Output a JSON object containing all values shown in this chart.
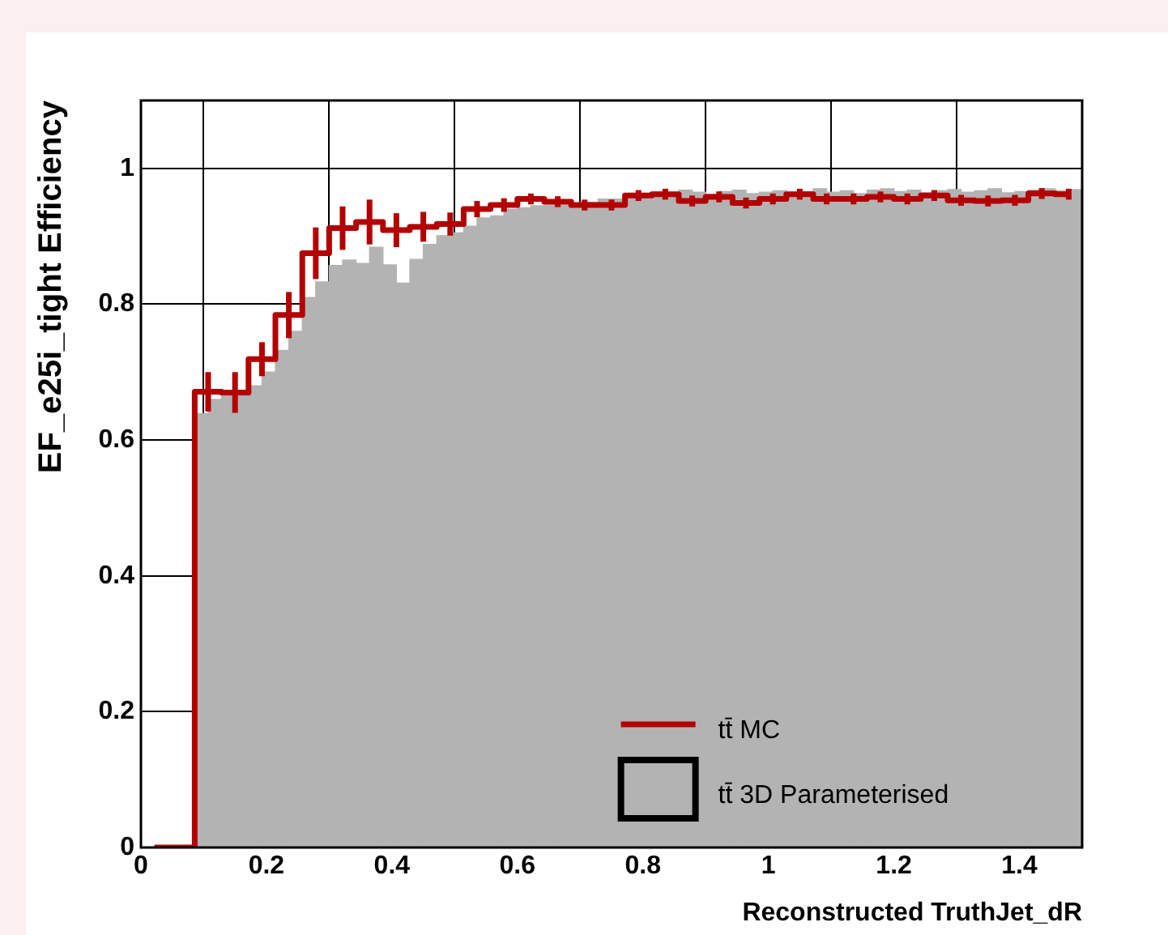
{
  "chart_data": {
    "type": "histogram",
    "xlabel": "Reconstructed TruthJet_dR",
    "ylabel": "EF_e25i_tight Efficiency",
    "xlim": [
      0,
      1.5
    ],
    "ylim": [
      0,
      1.1
    ],
    "xticks": [
      0,
      0.2,
      0.4,
      0.6,
      0.8,
      1,
      1.2,
      1.4
    ],
    "yticks": [
      0,
      0.2,
      0.4,
      0.6,
      0.8,
      1
    ],
    "grid": true,
    "legend": "bottom right",
    "bins": [
      0,
      0.0214,
      0.0429,
      0.0643,
      0.0857,
      0.1071,
      0.1286,
      0.15,
      0.1714,
      0.1929,
      0.2143,
      0.2357,
      0.2571,
      0.2786,
      0.3,
      0.3214,
      0.3429,
      0.3643,
      0.3857,
      0.4071,
      0.4286,
      0.45,
      0.4714,
      0.4929,
      0.5143,
      0.5357,
      0.5571,
      0.5786,
      0.6,
      0.6214,
      0.6429,
      0.6643,
      0.6857,
      0.7071,
      0.7286,
      0.75,
      0.7714,
      0.7929,
      0.8143,
      0.8357,
      0.8571,
      0.8786,
      0.9,
      0.9214,
      0.9429,
      0.9643,
      0.9857,
      1.0071,
      1.0286,
      1.05,
      1.0714,
      1.0929,
      1.1143,
      1.1357,
      1.1571,
      1.1786,
      1.2,
      1.2214,
      1.2429,
      1.2643,
      1.2857,
      1.3071,
      1.3286,
      1.35,
      1.3714,
      1.3929,
      1.4143,
      1.4357,
      1.4571,
      1.4786,
      1.5
    ],
    "series": [
      {
        "name": "tt̄ MC",
        "type": "step",
        "color": "#b30000",
        "x": [
          0.0214,
          0.0643,
          0.1071,
          0.15,
          0.1929,
          0.2357,
          0.2786,
          0.3214,
          0.3643,
          0.4071,
          0.45,
          0.4929,
          0.5357,
          0.5786,
          0.6214,
          0.6643,
          0.7071,
          0.75,
          0.7929,
          0.8357,
          0.8786,
          0.9214,
          0.9643,
          1.0071,
          1.05,
          1.0929,
          1.1357,
          1.1786,
          1.2214,
          1.2643,
          1.3071,
          1.35,
          1.3929,
          1.4357,
          1.4786
        ],
        "values": [
          0,
          0,
          0.671,
          0.67,
          0.719,
          0.784,
          0.875,
          0.912,
          0.921,
          0.909,
          0.914,
          0.918,
          0.94,
          0.946,
          0.955,
          0.951,
          0.946,
          0.946,
          0.96,
          0.962,
          0.952,
          0.958,
          0.949,
          0.955,
          0.962,
          0.955,
          0.955,
          0.958,
          0.955,
          0.96,
          0.953,
          0.952,
          0.953,
          0.963,
          0.962
        ],
        "errors": [
          null,
          null,
          0.029,
          0.03,
          0.025,
          0.034,
          0.038,
          0.032,
          0.033,
          0.025,
          0.022,
          0.017,
          0.012,
          0.01,
          0.008,
          0.008,
          0.008,
          0.008,
          0.008,
          0.008,
          0.008,
          0.008,
          0.008,
          0.008,
          0.008,
          0.008,
          0.008,
          0.008,
          0.008,
          0.008,
          0.008,
          0.008,
          0.008,
          0.008,
          0.008
        ]
      },
      {
        "name": "tt̄ 3D Parameterised",
        "color": "#b3b3b3",
        "values": [
          0,
          0,
          0,
          0,
          0.639,
          0.66,
          0.667,
          0.672,
          0.68,
          0.7,
          0.732,
          0.76,
          0.81,
          0.833,
          0.857,
          0.865,
          0.86,
          0.884,
          0.858,
          0.831,
          0.866,
          0.888,
          0.901,
          0.905,
          0.915,
          0.927,
          0.93,
          0.94,
          0.942,
          0.945,
          0.946,
          0.946,
          0.948,
          0.95,
          0.955,
          0.955,
          0.96,
          0.962,
          0.965,
          0.962,
          0.968,
          0.965,
          0.962,
          0.966,
          0.968,
          0.963,
          0.965,
          0.967,
          0.962,
          0.966,
          0.97,
          0.965,
          0.967,
          0.963,
          0.968,
          0.97,
          0.966,
          0.968,
          0.964,
          0.967,
          0.969,
          0.965,
          0.967,
          0.97,
          0.964,
          0.966,
          0.968,
          0.97,
          0.967,
          0.969
        ]
      }
    ]
  }
}
